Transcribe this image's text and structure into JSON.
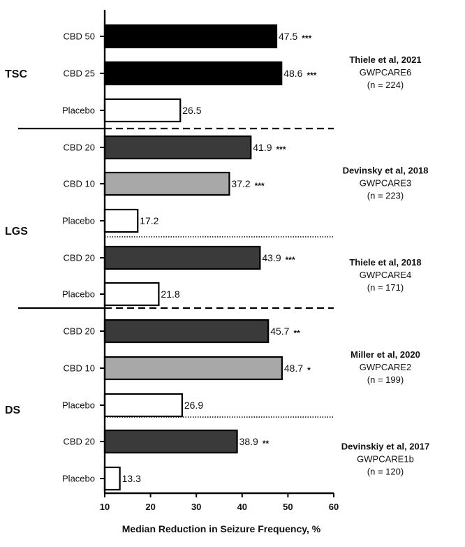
{
  "chart_data": {
    "type": "bar",
    "orientation": "horizontal",
    "xlabel": "Median Reduction in Seizure Frequency, %",
    "xlim": [
      10,
      60
    ],
    "xticks": [
      10,
      20,
      30,
      40,
      50,
      60
    ],
    "bars": [
      {
        "label": "CBD 50",
        "value": 47.5,
        "sig": "***",
        "fill": "#000000"
      },
      {
        "label": "CBD 25",
        "value": 48.6,
        "sig": "***",
        "fill": "#000000"
      },
      {
        "label": "Placebo",
        "value": 26.5,
        "sig": "",
        "fill": "#ffffff"
      },
      {
        "label": "CBD 20",
        "value": 41.9,
        "sig": "***",
        "fill": "#3a3a3a"
      },
      {
        "label": "CBD 10",
        "value": 37.2,
        "sig": "***",
        "fill": "#a8a8a8"
      },
      {
        "label": "Placebo",
        "value": 17.2,
        "sig": "",
        "fill": "#ffffff"
      },
      {
        "label": "CBD 20",
        "value": 43.9,
        "sig": "***",
        "fill": "#3a3a3a"
      },
      {
        "label": "Placebo",
        "value": 21.8,
        "sig": "",
        "fill": "#ffffff"
      },
      {
        "label": "CBD 20",
        "value": 45.7,
        "sig": "**",
        "fill": "#3a3a3a"
      },
      {
        "label": "CBD 10",
        "value": 48.7,
        "sig": "*",
        "fill": "#a8a8a8"
      },
      {
        "label": "Placebo",
        "value": 26.9,
        "sig": "",
        "fill": "#ffffff"
      },
      {
        "label": "CBD 20",
        "value": 38.9,
        "sig": "**",
        "fill": "#3a3a3a"
      },
      {
        "label": "Placebo",
        "value": 13.3,
        "sig": "",
        "fill": "#ffffff"
      }
    ],
    "groups": [
      {
        "label": "TSC",
        "bars": [
          0,
          1,
          2
        ]
      },
      {
        "label": "LGS",
        "bars": [
          3,
          4,
          5,
          6,
          7
        ]
      },
      {
        "label": "DS",
        "bars": [
          8,
          9,
          10,
          11,
          12
        ]
      }
    ],
    "studies": [
      {
        "title": "Thiele et al, 2021",
        "trial": "GWPCARE6",
        "n": "(n = 224)",
        "bars": [
          0,
          1,
          2
        ]
      },
      {
        "title": "Devinsky et al, 2018",
        "trial": "GWPCARE3",
        "n": "(n = 223)",
        "bars": [
          3,
          4,
          5
        ]
      },
      {
        "title": "Thiele et al, 2018",
        "trial": "GWPCARE4",
        "n": "(n = 171)",
        "bars": [
          6,
          7
        ]
      },
      {
        "title": "Miller et al, 2020",
        "trial": "GWPCARE2",
        "n": "(n = 199)",
        "bars": [
          8,
          9,
          10
        ]
      },
      {
        "title": "Devinskiy et al, 2017",
        "trial": "GWPCARE1b",
        "n": "(n = 120)",
        "bars": [
          11,
          12
        ]
      }
    ]
  }
}
